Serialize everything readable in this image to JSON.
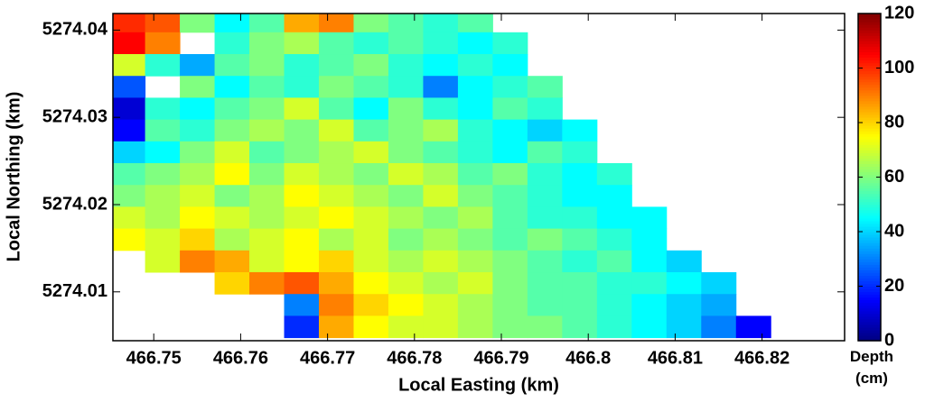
{
  "chart_data": {
    "type": "heatmap",
    "colormap": "jet",
    "xlabel": "Local Easting (km)",
    "ylabel": "Local Northing (km)",
    "colorbar_label": "Depth (cm)",
    "xlim": [
      466.7453,
      466.8295
    ],
    "ylim": [
      5274.0044,
      5274.0419
    ],
    "xticks": [
      466.75,
      466.76,
      466.77,
      466.78,
      466.79,
      466.8,
      466.81,
      466.82
    ],
    "yticks": [
      5274.01,
      5274.02,
      5274.03,
      5274.04
    ],
    "clim": [
      0,
      120
    ],
    "cticks": [
      0,
      20,
      40,
      60,
      80,
      100,
      120
    ],
    "x": [
      466.747,
      466.751,
      466.755,
      466.759,
      466.763,
      466.767,
      466.771,
      466.775,
      466.779,
      466.783,
      466.787,
      466.791,
      466.795,
      466.799,
      466.803,
      466.807,
      466.811,
      466.815,
      466.819,
      466.823,
      466.827
    ],
    "y": [
      5274.041,
      5274.0385,
      5274.036,
      5274.0335,
      5274.031,
      5274.0285,
      5274.026,
      5274.0235,
      5274.021,
      5274.0185,
      5274.016,
      5274.0135,
      5274.011,
      5274.0085,
      5274.006
    ],
    "z": [
      [
        100,
        95,
        60,
        45,
        55,
        85,
        90,
        60,
        55,
        50,
        55,
        null,
        null,
        null,
        null,
        null,
        null,
        null,
        null,
        null,
        null
      ],
      [
        105,
        90,
        null,
        50,
        60,
        65,
        55,
        50,
        55,
        50,
        45,
        50,
        null,
        null,
        null,
        null,
        null,
        null,
        null,
        null,
        null
      ],
      [
        70,
        50,
        35,
        55,
        60,
        50,
        55,
        60,
        50,
        45,
        50,
        45,
        null,
        null,
        null,
        null,
        null,
        null,
        null,
        null,
        null
      ],
      [
        25,
        null,
        60,
        45,
        55,
        50,
        60,
        55,
        50,
        30,
        45,
        50,
        55,
        null,
        null,
        null,
        null,
        null,
        null,
        null,
        null
      ],
      [
        10,
        50,
        45,
        55,
        60,
        70,
        55,
        45,
        60,
        50,
        45,
        55,
        50,
        null,
        null,
        null,
        null,
        null,
        null,
        null,
        null
      ],
      [
        15,
        55,
        50,
        60,
        65,
        60,
        70,
        55,
        60,
        65,
        50,
        45,
        40,
        45,
        null,
        null,
        null,
        null,
        null,
        null,
        null
      ],
      [
        40,
        45,
        60,
        70,
        55,
        60,
        65,
        70,
        60,
        55,
        50,
        45,
        55,
        50,
        null,
        null,
        null,
        null,
        null,
        null,
        null
      ],
      [
        55,
        60,
        65,
        75,
        60,
        70,
        65,
        60,
        70,
        65,
        55,
        60,
        50,
        45,
        50,
        null,
        null,
        null,
        null,
        null,
        null
      ],
      [
        60,
        65,
        70,
        60,
        65,
        75,
        70,
        65,
        60,
        70,
        60,
        55,
        50,
        45,
        45,
        null,
        null,
        null,
        null,
        null,
        null
      ],
      [
        70,
        65,
        75,
        70,
        65,
        70,
        75,
        70,
        65,
        60,
        65,
        55,
        50,
        50,
        45,
        45,
        null,
        null,
        null,
        null,
        null
      ],
      [
        75,
        70,
        80,
        65,
        70,
        75,
        65,
        70,
        60,
        65,
        60,
        55,
        60,
        55,
        50,
        45,
        null,
        null,
        null,
        null,
        null
      ],
      [
        null,
        70,
        90,
        85,
        70,
        75,
        80,
        70,
        65,
        70,
        65,
        60,
        55,
        50,
        55,
        45,
        40,
        null,
        null,
        null,
        null
      ],
      [
        null,
        null,
        null,
        80,
        90,
        95,
        85,
        75,
        70,
        65,
        70,
        60,
        55,
        55,
        50,
        50,
        45,
        40,
        null,
        null,
        null
      ],
      [
        null,
        null,
        null,
        null,
        null,
        30,
        90,
        80,
        75,
        70,
        65,
        60,
        55,
        55,
        50,
        45,
        40,
        35,
        null,
        null,
        null
      ],
      [
        null,
        null,
        null,
        null,
        null,
        20,
        85,
        75,
        70,
        70,
        65,
        60,
        60,
        55,
        50,
        45,
        40,
        30,
        15,
        null,
        null
      ]
    ]
  }
}
